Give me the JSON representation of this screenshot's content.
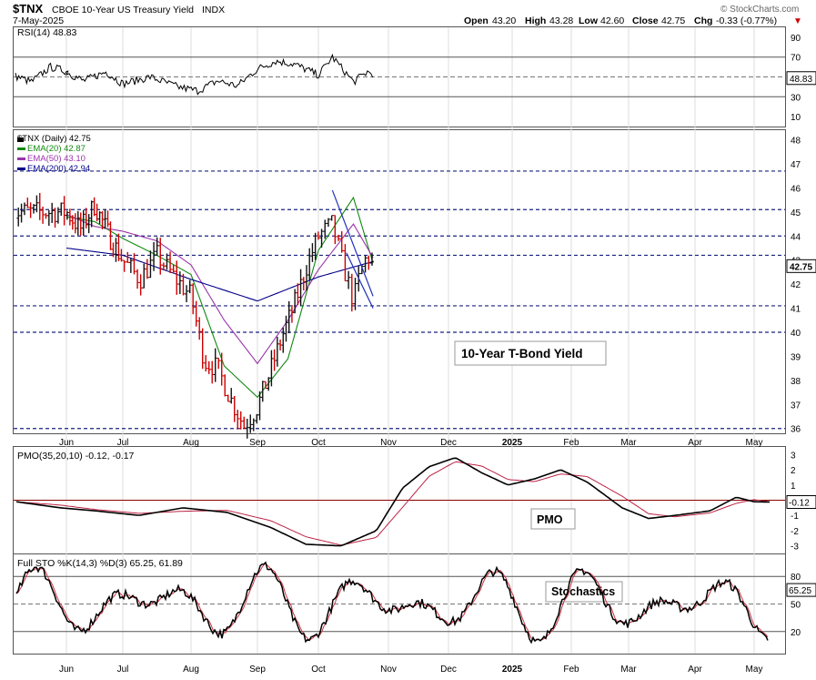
{
  "header": {
    "symbol": "$TNX",
    "name": "CBOE 10-Year US Treasury Yield",
    "exchange": "INDX",
    "date": "7-May-2025",
    "copyright": "© StockCharts.com",
    "open_label": "Open",
    "open": "43.20",
    "high_label": "High",
    "high": "43.28",
    "low_label": "Low",
    "low": "42.60",
    "close_label": "Close",
    "close": "42.75",
    "chg_label": "Chg",
    "chg": "-0.33 (-0.77%)",
    "chg_arrow": "▼"
  },
  "colors": {
    "up": "#111111",
    "down": "#cc0000",
    "ema20": "#118811",
    "ema50": "#9933aa",
    "ema200": "#000088",
    "pmo": "#000000",
    "pmo_signal": "#bb2244",
    "sto_k": "#000000",
    "sto_d": "#cc3344",
    "rsi": "#000000"
  },
  "x_axis": [
    "Jun",
    "Jul",
    "Aug",
    "Sep",
    "Oct",
    "Nov",
    "Dec",
    "2025",
    "Feb",
    "Mar",
    "Apr",
    "May"
  ],
  "rsi": {
    "legend": "RSI(14) 48.83",
    "ticks": [
      "90",
      "70",
      "50",
      "30",
      "10"
    ],
    "last_label": "48.83",
    "ylim": [
      0,
      100
    ],
    "overbought": 70,
    "oversold": 30
  },
  "price": {
    "legend_main": "$TNX (Daily) 42.75",
    "legend_ema20": "EMA(20) 42.87",
    "legend_ema50": "EMA(50) 43.10",
    "legend_ema200": "EMA(200) 42.94",
    "ticks": [
      "48",
      "47",
      "46",
      "45",
      "44",
      "43",
      "42",
      "41",
      "40",
      "39",
      "38",
      "37",
      "36"
    ],
    "last_label": "42.75",
    "hidden_labels": [
      "43.10",
      "42.94"
    ],
    "annotation": "10-Year T-Bond Yield",
    "ylim": [
      35.8,
      48.4
    ],
    "horizontal_lines": [
      46.7,
      45.1,
      44.0,
      43.2,
      41.1,
      40.0,
      36.0
    ],
    "resistance_line": [
      [
        4.2,
        45.9
      ],
      [
        4.78,
        41.5
      ]
    ],
    "support_line": [
      [
        4.4,
        43.3
      ],
      [
        4.78,
        41.0
      ]
    ]
  },
  "pmo": {
    "legend": "PMO(35,20,10) -0.12, -0.17",
    "ticks": [
      "3",
      "2",
      "1",
      "0",
      "-1",
      "-2",
      "-3"
    ],
    "last_label": "-0.12",
    "annotation": "PMO",
    "ylim": [
      -3.5,
      3.5
    ]
  },
  "sto": {
    "legend": "Full STO %K(14,3) %D(3) 65.25, 61.89",
    "ticks": [
      "80",
      "50",
      "20"
    ],
    "last_label": "65.25",
    "annotation": "Stochastics",
    "ylim": [
      0,
      100
    ]
  },
  "chart_data": {
    "type": "line",
    "title": "$TNX CBOE 10-Year US Treasury Yield",
    "x_unit": "months from mid-May 2024",
    "series": [
      {
        "name": "$TNX (Daily)",
        "x": [
          0,
          0.25,
          0.5,
          0.8,
          1.0,
          1.25,
          1.5,
          1.75,
          2.0,
          2.2,
          2.4,
          2.6,
          2.8,
          3.0,
          3.2,
          3.4,
          3.6,
          3.8,
          4.0,
          4.2,
          4.35,
          4.5,
          4.6,
          4.7,
          4.78
        ],
        "values": [
          45.0,
          44.3,
          45.3,
          43.8,
          43.0,
          42.2,
          43.2,
          42.3,
          41.5,
          38.8,
          38.5,
          37.2,
          36.1,
          36.9,
          38.3,
          39.8,
          41.1,
          42.7,
          44.0,
          44.5,
          42.8,
          41.3,
          42.5,
          43.2,
          42.75
        ]
      },
      {
        "name": "EMA(20)",
        "x": [
          0,
          0.5,
          1,
          1.5,
          2,
          2.5,
          3,
          3.5,
          4,
          4.5,
          4.78
        ],
        "values": [
          44.8,
          44.6,
          43.9,
          43.2,
          42.4,
          38.6,
          37.3,
          38.9,
          43.4,
          45.6,
          42.87
        ]
      },
      {
        "name": "EMA(50)",
        "x": [
          0,
          0.5,
          1,
          1.5,
          2,
          2.5,
          3,
          3.5,
          4,
          4.5,
          4.78
        ],
        "values": [
          44.9,
          44.4,
          44.2,
          43.8,
          42.8,
          40.5,
          38.7,
          40.5,
          42.6,
          44.5,
          43.1
        ]
      },
      {
        "name": "EMA(200)",
        "x": [
          0,
          1,
          2,
          3,
          4,
          4.78
        ],
        "values": [
          43.5,
          43.2,
          42.2,
          41.3,
          42.3,
          42.94
        ]
      }
    ],
    "y_ticks": [
      36,
      37,
      38,
      39,
      40,
      41,
      42,
      43,
      44,
      45,
      46,
      47,
      48
    ],
    "ylim": [
      35.8,
      48.4
    ]
  }
}
